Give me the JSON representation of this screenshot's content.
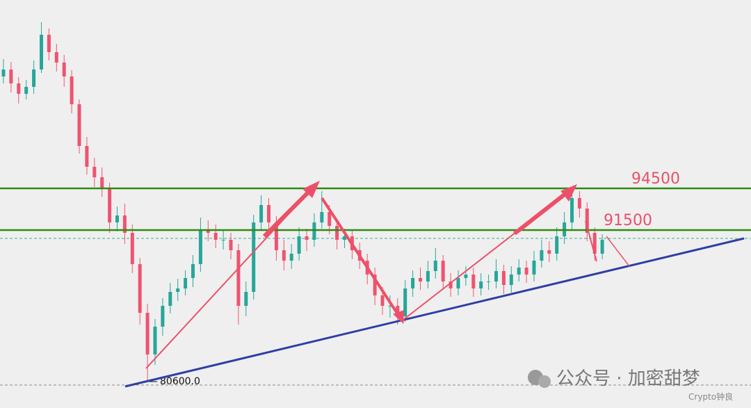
{
  "chart_data": {
    "type": "candlestick",
    "ylim": [
      78700,
      108050
    ],
    "up_color": "#26a69a",
    "down_color": "#ef5370",
    "open": [
      102550,
      103050,
      102050,
      101300,
      101800,
      103050,
      105550,
      104300,
      103550,
      102550,
      100550,
      97550,
      96050,
      95300,
      94550,
      92050,
      92550,
      91300,
      89050,
      85550,
      82550,
      84550,
      86050,
      87050,
      87300,
      88050,
      89050,
      91550,
      91300,
      90800,
      90800,
      90050,
      86050,
      87050,
      92050,
      93300,
      92050,
      90050,
      89300,
      89800,
      91050,
      90800,
      92050,
      92800,
      91800,
      90800,
      91050,
      90050,
      89300,
      88300,
      86800,
      86050,
      86050,
      85300,
      87300,
      88050,
      87800,
      88550,
      89300,
      87800,
      87300,
      88050,
      88300,
      87300,
      87800,
      87800,
      88550,
      87550,
      88300,
      88800,
      88300,
      89300,
      90050,
      89800,
      91050,
      92050,
      93800,
      93050,
      91300,
      89800
    ],
    "high": [
      103800,
      103600,
      102500,
      102300,
      103700,
      106450,
      106000,
      104900,
      104100,
      103000,
      100900,
      98200,
      96700,
      96000,
      94900,
      93200,
      93400,
      91900,
      89500,
      86200,
      85100,
      86600,
      87700,
      88000,
      88600,
      89700,
      92400,
      92200,
      91900,
      91500,
      91300,
      90500,
      87800,
      92600,
      94000,
      93800,
      92500,
      90800,
      90500,
      91700,
      91600,
      92700,
      94300,
      93300,
      92300,
      91600,
      91500,
      90600,
      89800,
      88800,
      87400,
      86800,
      86600,
      87900,
      88600,
      88800,
      89300,
      90200,
      89700,
      88400,
      88600,
      88900,
      88800,
      88400,
      88300,
      89400,
      89000,
      88900,
      89400,
      89300,
      90000,
      90800,
      90700,
      91700,
      92800,
      94600,
      94300,
      93500,
      91700,
      91200
    ],
    "low": [
      102050,
      101400,
      100600,
      100900,
      101300,
      102800,
      103700,
      102900,
      101800,
      99900,
      97000,
      95500,
      94600,
      93900,
      91300,
      91400,
      90500,
      88400,
      84700,
      80600,
      81800,
      83900,
      85500,
      86400,
      86800,
      87400,
      88500,
      90700,
      90200,
      90100,
      89400,
      84700,
      85300,
      86500,
      91500,
      91400,
      89300,
      88600,
      88700,
      89300,
      90000,
      90300,
      91600,
      91200,
      90100,
      90200,
      89400,
      88700,
      87600,
      86100,
      85400,
      85200,
      84700,
      84900,
      86700,
      87200,
      87300,
      88000,
      87200,
      86700,
      86800,
      87500,
      86700,
      86800,
      87200,
      87300,
      86900,
      87000,
      87800,
      87700,
      87800,
      88800,
      89200,
      89300,
      90500,
      91500,
      92400,
      90700,
      89300,
      89400
    ],
    "close": [
      103050,
      102050,
      101300,
      101800,
      103050,
      105550,
      104300,
      103550,
      102550,
      100550,
      97550,
      96050,
      95300,
      94550,
      92050,
      92550,
      91300,
      89050,
      85550,
      82550,
      84550,
      86050,
      87050,
      87300,
      88050,
      89050,
      91550,
      91300,
      90800,
      90800,
      90050,
      86050,
      87050,
      92050,
      93300,
      92050,
      90050,
      89300,
      89800,
      91050,
      90800,
      92050,
      92800,
      91800,
      90800,
      91050,
      90050,
      89300,
      88300,
      86800,
      86050,
      86050,
      85300,
      87300,
      88050,
      87800,
      88550,
      89300,
      87800,
      87300,
      88050,
      88300,
      87300,
      87800,
      87800,
      88550,
      87550,
      88300,
      88800,
      88300,
      89300,
      90050,
      89800,
      91050,
      92050,
      93800,
      93050,
      91300,
      89800,
      90800
    ],
    "levels": [
      94500,
      91500
    ],
    "level_color": "#2f8a12",
    "level_label_color": "#e8506a",
    "dashed_levels": [
      90900,
      80350
    ],
    "dashed_colors": [
      "#3aa89a",
      "#888888"
    ],
    "low_marker": {
      "value": 80600,
      "label": "80600.0"
    }
  },
  "watermark": {
    "title": "公众号 · 加密甜梦",
    "author": "Crypto钟良"
  }
}
